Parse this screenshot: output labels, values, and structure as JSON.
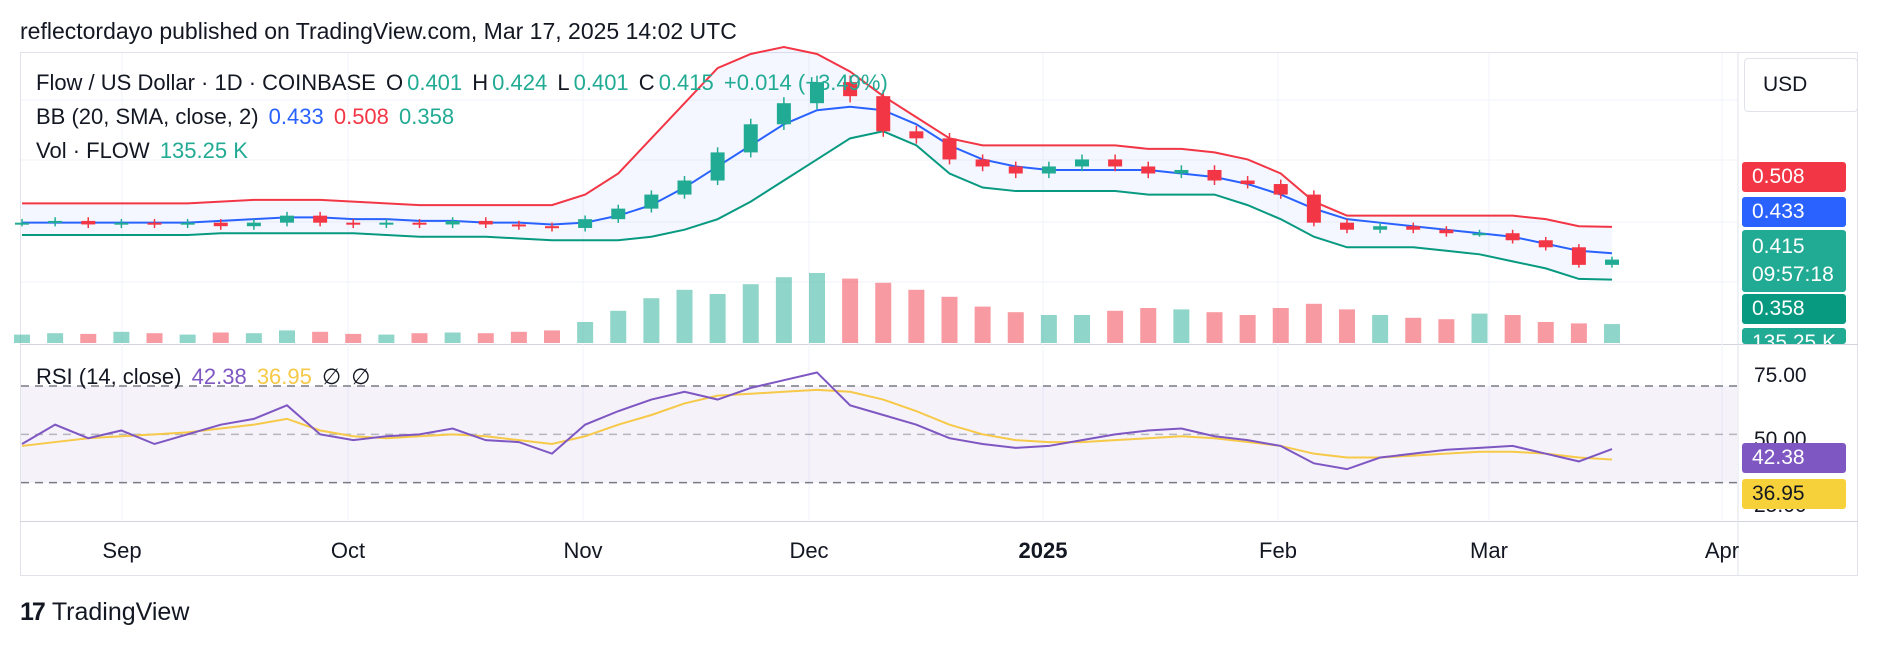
{
  "header": "reflectordayo published on TradingView.com, Mar 17, 2025 14:02 UTC",
  "legend": {
    "pair": "Flow / US Dollar · 1D · COINBASE",
    "o_lbl": "O",
    "o": "0.401",
    "h_lbl": "H",
    "h": "0.424",
    "l_lbl": "L",
    "l": "0.401",
    "c_lbl": "C",
    "c": "0.415",
    "chg": "+0.014 (+3.49%)",
    "bb_lbl": "BB (20, SMA, close, 2)",
    "bb_mid": "0.433",
    "bb_up": "0.508",
    "bb_low": "0.358",
    "vol_lbl": "Vol · FLOW",
    "vol": "135.25 K",
    "rsi_lbl": "RSI (14, close)",
    "rsi": "42.38",
    "rsi_ma": "36.95",
    "na1": "∅",
    "na2": "∅"
  },
  "currency": "USD",
  "price_tags": {
    "upper": "0.508",
    "middle": "0.433",
    "last": "0.415",
    "countdown": "09:57:18",
    "lower": "0.358",
    "volume": "135.25 K",
    "rsi": "42.38",
    "rsi_ma": "36.95"
  },
  "rsi_axis": [
    "75.00",
    "50.00",
    "25.00"
  ],
  "x_labels": [
    "Sep",
    "Oct",
    "Nov",
    "Dec",
    "2025",
    "Feb",
    "Mar",
    "Apr"
  ],
  "brand": "TradingView",
  "colors": {
    "up": "#22ab94",
    "down": "#f23645",
    "bb_mid": "#2962ff",
    "bb_up": "#f23645",
    "bb_low": "#089981",
    "rsi": "#7e57c2",
    "rsi_ma": "#f7c948"
  },
  "chart_data": {
    "type": "candlestick",
    "title": "Flow / US Dollar · 1D · COINBASE",
    "price_dates": [
      "2024-08-18",
      "2024-08-22",
      "2024-08-26",
      "2024-08-30",
      "2024-09-04",
      "2024-09-09",
      "2024-09-14",
      "2024-09-19",
      "2024-09-24",
      "2024-09-29",
      "2024-10-04",
      "2024-10-09",
      "2024-10-14",
      "2024-10-19",
      "2024-10-24",
      "2024-10-29",
      "2024-11-03",
      "2024-11-08",
      "2024-11-12",
      "2024-11-16",
      "2024-11-20",
      "2024-11-24",
      "2024-11-28",
      "2024-12-01",
      "2024-12-04",
      "2024-12-07",
      "2024-12-10",
      "2024-12-13",
      "2024-12-16",
      "2024-12-20",
      "2024-12-25",
      "2024-12-30",
      "2025-01-04",
      "2025-01-08",
      "2025-01-12",
      "2025-01-16",
      "2025-01-20",
      "2025-01-24",
      "2025-01-28",
      "2025-02-02",
      "2025-02-06",
      "2025-02-11",
      "2025-02-16",
      "2025-02-21",
      "2025-02-26",
      "2025-03-01",
      "2025-03-06",
      "2025-03-11",
      "2025-03-16"
    ],
    "close": [
      0.52,
      0.525,
      0.515,
      0.52,
      0.515,
      0.52,
      0.51,
      0.52,
      0.54,
      0.52,
      0.515,
      0.52,
      0.515,
      0.525,
      0.515,
      0.51,
      0.505,
      0.53,
      0.56,
      0.6,
      0.64,
      0.72,
      0.8,
      0.86,
      0.92,
      0.88,
      0.78,
      0.76,
      0.7,
      0.68,
      0.66,
      0.68,
      0.7,
      0.68,
      0.66,
      0.67,
      0.64,
      0.63,
      0.6,
      0.52,
      0.5,
      0.51,
      0.5,
      0.49,
      0.49,
      0.47,
      0.45,
      0.4,
      0.415
    ],
    "bb_upper": [
      0.575,
      0.575,
      0.575,
      0.575,
      0.575,
      0.575,
      0.58,
      0.585,
      0.585,
      0.585,
      0.58,
      0.575,
      0.57,
      0.57,
      0.57,
      0.57,
      0.57,
      0.6,
      0.66,
      0.76,
      0.86,
      0.96,
      1.0,
      1.02,
      1.0,
      0.95,
      0.88,
      0.82,
      0.76,
      0.74,
      0.74,
      0.74,
      0.74,
      0.74,
      0.73,
      0.73,
      0.72,
      0.7,
      0.66,
      0.58,
      0.54,
      0.54,
      0.54,
      0.54,
      0.54,
      0.54,
      0.53,
      0.51,
      0.508
    ],
    "bb_middle": [
      0.52,
      0.52,
      0.52,
      0.52,
      0.52,
      0.52,
      0.525,
      0.53,
      0.535,
      0.535,
      0.53,
      0.53,
      0.525,
      0.525,
      0.52,
      0.52,
      0.515,
      0.52,
      0.54,
      0.57,
      0.62,
      0.68,
      0.74,
      0.8,
      0.84,
      0.85,
      0.84,
      0.8,
      0.74,
      0.7,
      0.68,
      0.67,
      0.67,
      0.67,
      0.67,
      0.66,
      0.65,
      0.63,
      0.6,
      0.56,
      0.53,
      0.52,
      0.51,
      0.5,
      0.49,
      0.48,
      0.46,
      0.44,
      0.433
    ],
    "bb_lower": [
      0.485,
      0.485,
      0.485,
      0.485,
      0.485,
      0.485,
      0.49,
      0.49,
      0.49,
      0.49,
      0.49,
      0.485,
      0.48,
      0.48,
      0.48,
      0.475,
      0.47,
      0.47,
      0.47,
      0.48,
      0.5,
      0.53,
      0.58,
      0.64,
      0.7,
      0.76,
      0.78,
      0.74,
      0.66,
      0.62,
      0.61,
      0.61,
      0.61,
      0.61,
      0.6,
      0.6,
      0.6,
      0.57,
      0.53,
      0.48,
      0.45,
      0.45,
      0.45,
      0.44,
      0.43,
      0.41,
      0.39,
      0.36,
      0.358
    ],
    "volume_k": [
      60,
      70,
      65,
      80,
      70,
      60,
      75,
      70,
      90,
      80,
      65,
      60,
      70,
      75,
      70,
      80,
      90,
      150,
      230,
      320,
      380,
      350,
      420,
      470,
      500,
      460,
      430,
      380,
      330,
      260,
      220,
      200,
      200,
      230,
      250,
      240,
      220,
      200,
      250,
      280,
      240,
      200,
      180,
      170,
      210,
      200,
      150,
      140,
      135.25
    ],
    "rsi": [
      45,
      55,
      48,
      52,
      45,
      50,
      55,
      58,
      65,
      50,
      47,
      49,
      50,
      53,
      47,
      46,
      40,
      55,
      62,
      68,
      72,
      68,
      74,
      78,
      82,
      65,
      60,
      55,
      48,
      45,
      43,
      44,
      47,
      50,
      52,
      53,
      49,
      47,
      44,
      35,
      32,
      38,
      40,
      42,
      43,
      44,
      40,
      36,
      42.38
    ],
    "rsi_ma": [
      44,
      46,
      48,
      49,
      50,
      51,
      53,
      55,
      58,
      52,
      49,
      48,
      49,
      50,
      49,
      47,
      45,
      49,
      55,
      60,
      66,
      70,
      71,
      72,
      73,
      72,
      68,
      62,
      55,
      50,
      47,
      46,
      46,
      47,
      48,
      49,
      48,
      46,
      44,
      40,
      38,
      38,
      39,
      40,
      41,
      41,
      40,
      38,
      36.95
    ],
    "y_range": [
      0.3,
      1.0
    ],
    "rsi_levels": [
      75,
      50,
      25
    ],
    "x_ticks": [
      "Sep",
      "Oct",
      "Nov",
      "Dec",
      "2025",
      "Feb",
      "Mar",
      "Apr"
    ],
    "grid": true
  }
}
